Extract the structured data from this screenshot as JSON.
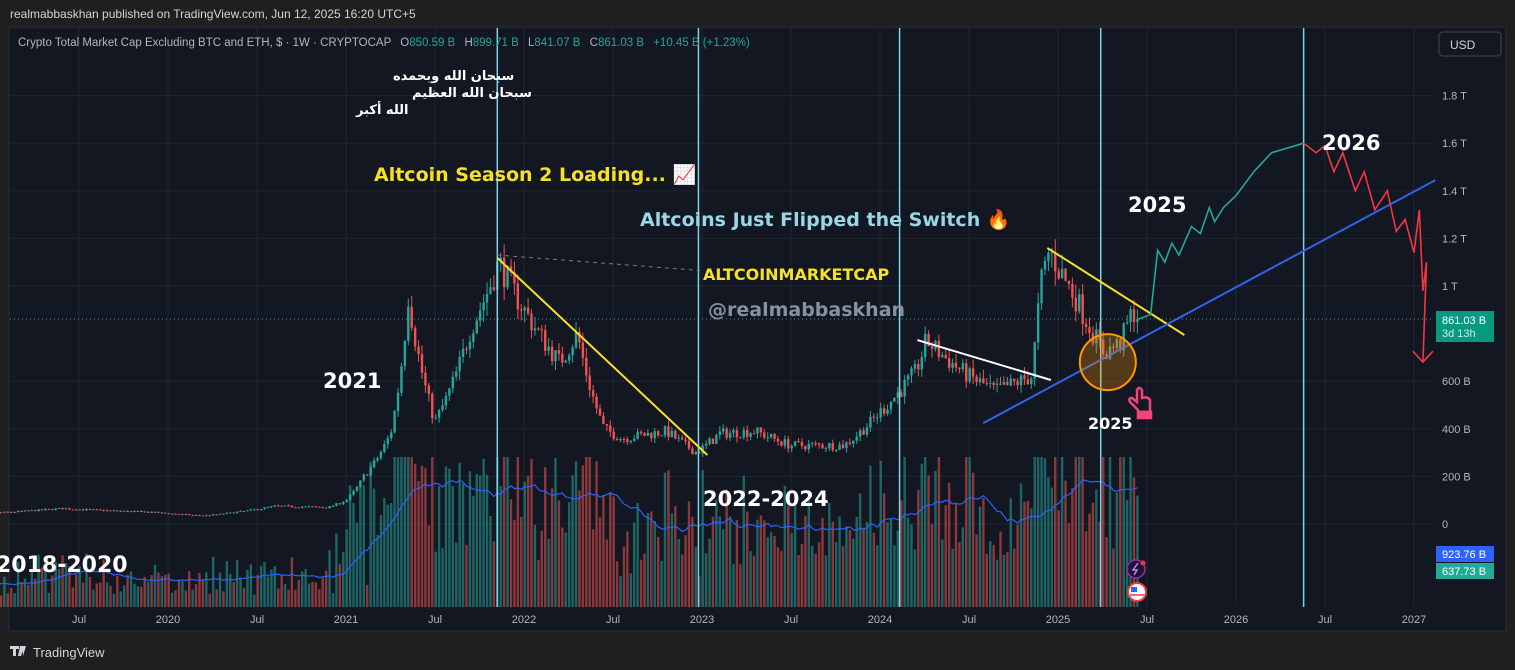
{
  "header": {
    "published": "realmabbaskhan published on TradingView.com, Jun 12, 2025 16:20 UTC+5"
  },
  "legend": {
    "symbol": "Crypto Total Market Cap Excluding BTC and ETH, $ · 1W · CRYPTOCAP",
    "o_label": "O",
    "o": "850.59 B",
    "h_label": "H",
    "h": "899.71 B",
    "l_label": "L",
    "l": "841.07 B",
    "c_label": "C",
    "c": "861.03 B",
    "change": "+10.45 B (+1.23%)"
  },
  "currency_button": "USD",
  "footer": {
    "brand": "TradingView"
  },
  "badges": {
    "last_price": "861.03 B",
    "countdown": "3d 13h",
    "ma_value": "923.76 B",
    "volume_value": "637.73 B"
  },
  "annotations": {
    "arabic_1": "سبحان الله وبحمده",
    "arabic_2": "سبحان الله العظيم",
    "arabic_3": "الله أكبر",
    "season": "Altcoin Season 2 Loading... 📈",
    "flipped": "Altcoins Just Flipped the Switch 🔥",
    "ticker": "ALTCOINMARKETCAP",
    "handle": "@realmabbaskhan",
    "y2021": "2021",
    "y2022_2024": "2022-2024",
    "y2018_2020": "2018-2020",
    "y2025a": "2025",
    "y2025b": "2025",
    "y2026": "2026"
  },
  "colors": {
    "up": "#26a69a",
    "down": "#ef5350",
    "bg": "#131722",
    "cycle_line": "#7fd3e6",
    "trend_yellow": "#f5e12a",
    "trend_blue": "#2f63e8",
    "ma": "#2962ff"
  },
  "chart_data": {
    "type": "candlestick",
    "title": "Crypto Total Market Cap Excluding BTC and ETH",
    "interval": "1W",
    "unit": "B USD",
    "ylim": [
      0,
      1900
    ],
    "y_ticks": [
      {
        "v": 0,
        "label": "0"
      },
      {
        "v": 200,
        "label": "200 B"
      },
      {
        "v": 400,
        "label": "400 B"
      },
      {
        "v": 600,
        "label": "600 B"
      },
      {
        "v": 1000,
        "label": "1 T"
      },
      {
        "v": 1200,
        "label": "1.2 T"
      },
      {
        "v": 1400,
        "label": "1.4 T"
      },
      {
        "v": 1600,
        "label": "1.6 T"
      },
      {
        "v": 1800,
        "label": "1.8 T"
      }
    ],
    "x_ticks": [
      {
        "t": 2019.5,
        "label": "Jul"
      },
      {
        "t": 2020,
        "label": "2020"
      },
      {
        "t": 2020.5,
        "label": "Jul"
      },
      {
        "t": 2021,
        "label": "2021"
      },
      {
        "t": 2021.5,
        "label": "Jul"
      },
      {
        "t": 2022,
        "label": "2022"
      },
      {
        "t": 2022.5,
        "label": "Jul"
      },
      {
        "t": 2023,
        "label": "2023"
      },
      {
        "t": 2023.5,
        "label": "Jul"
      },
      {
        "t": 2024,
        "label": "2024"
      },
      {
        "t": 2024.5,
        "label": "Jul"
      },
      {
        "t": 2025,
        "label": "2025"
      },
      {
        "t": 2025.5,
        "label": "Jul"
      },
      {
        "t": 2026,
        "label": "2026"
      },
      {
        "t": 2026.5,
        "label": "Jul"
      },
      {
        "t": 2027,
        "label": "2027"
      }
    ],
    "price_path": [
      [
        2018.85,
        40
      ],
      [
        2019.4,
        65
      ],
      [
        2019.9,
        50
      ],
      [
        2020.2,
        35
      ],
      [
        2020.6,
        75
      ],
      [
        2020.9,
        70
      ],
      [
        2021.0,
        100
      ],
      [
        2021.1,
        200
      ],
      [
        2021.25,
        380
      ],
      [
        2021.35,
        960
      ],
      [
        2021.5,
        430
      ],
      [
        2021.7,
        820
      ],
      [
        2021.86,
        1100
      ],
      [
        2022.0,
        900
      ],
      [
        2022.2,
        680
      ],
      [
        2022.3,
        800
      ],
      [
        2022.45,
        400
      ],
      [
        2022.55,
        360
      ],
      [
        2022.8,
        390
      ],
      [
        2022.97,
        300
      ],
      [
        2023.1,
        380
      ],
      [
        2023.3,
        390
      ],
      [
        2023.5,
        330
      ],
      [
        2023.8,
        330
      ],
      [
        2024.0,
        470
      ],
      [
        2024.2,
        640
      ],
      [
        2024.26,
        770
      ],
      [
        2024.5,
        620
      ],
      [
        2024.65,
        560
      ],
      [
        2024.85,
        620
      ],
      [
        2024.9,
        1000
      ],
      [
        2024.95,
        1150
      ],
      [
        2025.1,
        950
      ],
      [
        2025.26,
        720
      ],
      [
        2025.35,
        760
      ],
      [
        2025.42,
        900
      ],
      [
        2025.45,
        861
      ]
    ],
    "last": {
      "open": 850.59,
      "high": 899.71,
      "low": 841.07,
      "close": 861.03,
      "change": 10.45,
      "change_pct": 1.23
    },
    "cycle_lines": [
      2021.85,
      2022.98,
      2024.11,
      2025.24,
      2026.38
    ],
    "trendlines": [
      {
        "name": "yellow-downtrend-2022",
        "color": "#f5e12a",
        "from": [
          2021.85,
          1118
        ],
        "to": [
          2023.03,
          290
        ]
      },
      {
        "name": "yellow-downtrend-2025",
        "color": "#f5e12a",
        "from": [
          2024.94,
          1160
        ],
        "to": [
          2025.71,
          794
        ]
      },
      {
        "name": "white-downtrend-2024",
        "color": "#ffffff",
        "from": [
          2024.21,
          773
        ],
        "to": [
          2024.96,
          605
        ]
      },
      {
        "name": "blue-uptrend-support",
        "color": "#2f63e8",
        "from": [
          2024.58,
          424
        ],
        "to": [
          2027.12,
          1445
        ]
      },
      {
        "name": "gray-dashed",
        "color": "#787b86",
        "from": [
          2021.85,
          1130
        ],
        "to": [
          2022.99,
          1065
        ],
        "dashed": true
      }
    ],
    "projection_up": [
      [
        2025.45,
        860
      ],
      [
        2025.52,
        880
      ],
      [
        2025.56,
        1150
      ],
      [
        2025.6,
        1100
      ],
      [
        2025.64,
        1180
      ],
      [
        2025.68,
        1130
      ],
      [
        2025.72,
        1200
      ],
      [
        2025.75,
        1250
      ],
      [
        2025.8,
        1220
      ],
      [
        2025.85,
        1330
      ],
      [
        2025.88,
        1270
      ],
      [
        2025.93,
        1330
      ],
      [
        2026.0,
        1380
      ],
      [
        2026.1,
        1480
      ],
      [
        2026.2,
        1560
      ],
      [
        2026.38,
        1600
      ]
    ],
    "projection_down": [
      [
        2026.38,
        1600
      ],
      [
        2026.45,
        1560
      ],
      [
        2026.5,
        1590
      ],
      [
        2026.55,
        1480
      ],
      [
        2026.6,
        1560
      ],
      [
        2026.67,
        1400
      ],
      [
        2026.72,
        1480
      ],
      [
        2026.78,
        1320
      ],
      [
        2026.85,
        1400
      ],
      [
        2026.9,
        1230
      ],
      [
        2026.95,
        1280
      ],
      [
        2027.0,
        1140
      ],
      [
        2027.03,
        1320
      ],
      [
        2027.05,
        980
      ],
      [
        2027.07,
        1100
      ],
      [
        2027.05,
        680
      ]
    ],
    "highlight_circle": {
      "t": 2025.28,
      "v": 680
    }
  }
}
